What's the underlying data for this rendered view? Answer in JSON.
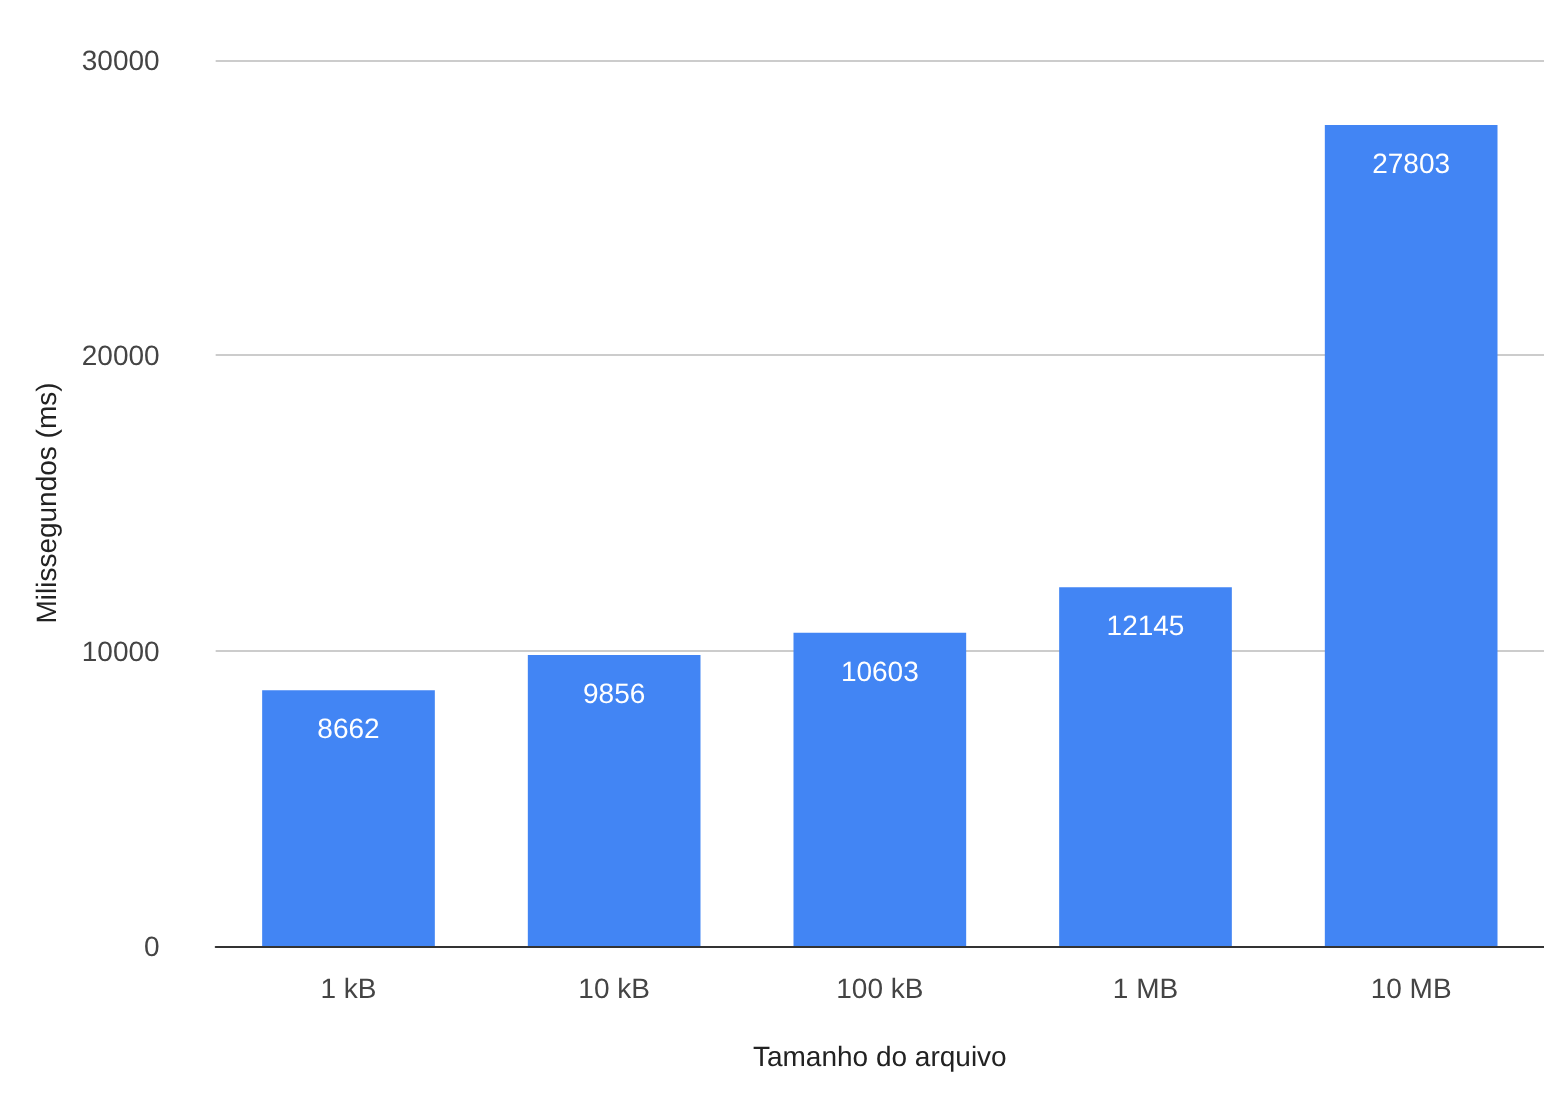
{
  "chart_data": {
    "type": "bar",
    "xlabel": "Tamanho do arquivo",
    "ylabel": "Milissegundos (ms)",
    "categories": [
      "1 kB",
      "10 kB",
      "100 kB",
      "1 MB",
      "10 MB"
    ],
    "values": [
      8662,
      9856,
      10603,
      12145,
      27803
    ],
    "color": "#4285f4",
    "ylim": [
      0,
      30000
    ],
    "yticks": [
      0,
      10000,
      20000,
      30000
    ],
    "grid": "y",
    "data_labels": true
  }
}
